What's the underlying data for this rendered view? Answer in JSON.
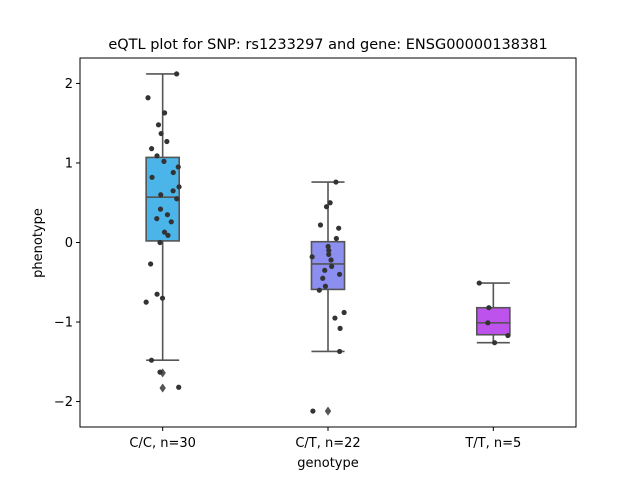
{
  "chart_data": {
    "type": "box",
    "title": "eQTL plot for SNP: rs1233297 and gene: ENSG00000138381",
    "xlabel": "genotype",
    "ylabel": "phenotype",
    "ylim": [
      -2.32,
      2.32
    ],
    "yticks": [
      {
        "value": 2,
        "label": "2"
      },
      {
        "value": 1,
        "label": "1"
      },
      {
        "value": 0,
        "label": "0"
      },
      {
        "value": -1,
        "label": "−1"
      },
      {
        "value": -2,
        "label": "−2"
      }
    ],
    "grid": false,
    "categories": [
      "C/C, n=30",
      "C/T, n=22",
      "T/T, n=5"
    ],
    "groups": [
      {
        "label": "C/C, n=30",
        "color": "#4bb5ea",
        "q1": 0.02,
        "median": 0.57,
        "q3": 1.07,
        "whisker_low": -1.48,
        "whisker_high": 2.12,
        "outliers": [
          -1.64,
          -1.83
        ],
        "points": [
          2.12,
          1.82,
          1.63,
          1.48,
          1.37,
          1.27,
          1.18,
          1.09,
          1.02,
          0.95,
          0.88,
          0.82,
          0.7,
          0.65,
          0.6,
          0.55,
          0.42,
          0.35,
          0.3,
          0.26,
          0.13,
          0.09,
          0.0,
          -0.27,
          -0.65,
          -0.7,
          -0.75,
          -1.48,
          -1.63,
          -1.82
        ]
      },
      {
        "label": "C/T, n=22",
        "color": "#8c8ef0",
        "q1": -0.59,
        "median": -0.27,
        "q3": 0.01,
        "whisker_low": -1.37,
        "whisker_high": 0.76,
        "outliers": [
          -2.12
        ],
        "points": [
          0.76,
          0.5,
          0.45,
          0.22,
          0.18,
          0.05,
          -0.05,
          -0.1,
          -0.15,
          -0.18,
          -0.22,
          -0.3,
          -0.35,
          -0.4,
          -0.45,
          -0.55,
          -0.6,
          -0.88,
          -0.95,
          -1.08,
          -1.37,
          -2.12
        ]
      },
      {
        "label": "T/T, n=5",
        "color": "#bd52ec",
        "q1": -1.16,
        "median": -1.01,
        "q3": -0.82,
        "whisker_low": -1.26,
        "whisker_high": -0.51,
        "outliers": [],
        "points": [
          -0.51,
          -0.82,
          -1.01,
          -1.17,
          -1.26
        ]
      }
    ]
  }
}
